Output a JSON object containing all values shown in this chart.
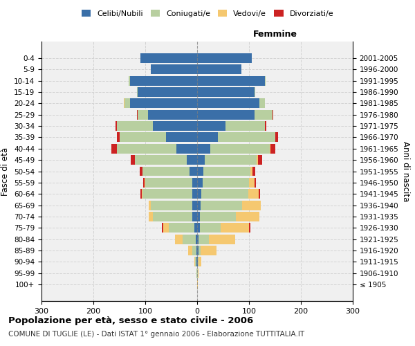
{
  "age_groups": [
    "100+",
    "95-99",
    "90-94",
    "85-89",
    "80-84",
    "75-79",
    "70-74",
    "65-69",
    "60-64",
    "55-59",
    "50-54",
    "45-49",
    "40-44",
    "35-39",
    "30-34",
    "25-29",
    "20-24",
    "15-19",
    "10-14",
    "5-9",
    "0-4"
  ],
  "birth_years": [
    "≤ 1905",
    "1906-1910",
    "1911-1915",
    "1916-1920",
    "1921-1925",
    "1926-1930",
    "1931-1935",
    "1936-1940",
    "1941-1945",
    "1946-1950",
    "1951-1955",
    "1956-1960",
    "1961-1965",
    "1966-1970",
    "1971-1975",
    "1976-1980",
    "1981-1985",
    "1986-1990",
    "1991-1995",
    "1996-2000",
    "2001-2005"
  ],
  "males": {
    "celibi": [
      0,
      0,
      1,
      1,
      3,
      5,
      10,
      10,
      10,
      10,
      15,
      20,
      40,
      60,
      85,
      95,
      130,
      115,
      130,
      90,
      110
    ],
    "coniugati": [
      0,
      1,
      3,
      8,
      25,
      50,
      75,
      80,
      95,
      90,
      90,
      100,
      115,
      90,
      70,
      20,
      10,
      1,
      2,
      0,
      0
    ],
    "vedovi": [
      0,
      1,
      2,
      8,
      15,
      10,
      8,
      3,
      2,
      1,
      1,
      0,
      0,
      0,
      0,
      0,
      1,
      0,
      0,
      0,
      0
    ],
    "divorziati": [
      0,
      0,
      0,
      0,
      0,
      3,
      0,
      1,
      2,
      3,
      5,
      8,
      10,
      5,
      2,
      1,
      1,
      0,
      0,
      0,
      0
    ]
  },
  "females": {
    "nubili": [
      0,
      0,
      1,
      2,
      3,
      5,
      5,
      7,
      8,
      10,
      12,
      15,
      25,
      40,
      55,
      110,
      120,
      110,
      130,
      85,
      105
    ],
    "coniugate": [
      0,
      1,
      2,
      5,
      20,
      40,
      70,
      80,
      90,
      90,
      90,
      100,
      115,
      110,
      75,
      35,
      10,
      2,
      2,
      0,
      0
    ],
    "vedove": [
      1,
      2,
      5,
      30,
      50,
      55,
      45,
      35,
      20,
      10,
      5,
      2,
      1,
      1,
      0,
      0,
      0,
      0,
      0,
      0,
      0
    ],
    "divorziate": [
      0,
      0,
      0,
      0,
      0,
      3,
      0,
      1,
      3,
      3,
      5,
      8,
      10,
      5,
      3,
      1,
      1,
      0,
      0,
      0,
      0
    ]
  },
  "colors": {
    "celibi": "#3a6fa8",
    "coniugati": "#b8cfa0",
    "vedovi": "#f5c870",
    "divorziati": "#cc2222"
  },
  "xlim": 300,
  "title": "Popolazione per età, sesso e stato civile - 2006",
  "subtitle": "COMUNE DI TUGLIE (LE) - Dati ISTAT 1° gennaio 2006 - Elaborazione TUTTITALIA.IT",
  "ylabel_left": "Fasce di età",
  "ylabel_right": "Anni di nascita",
  "xlabel_right": "Femmine",
  "legend_labels": [
    "Celibi/Nubili",
    "Coniugati/e",
    "Vedovi/e",
    "Divorziati/e"
  ]
}
